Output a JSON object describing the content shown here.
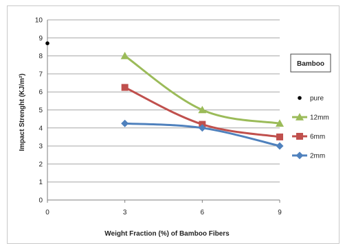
{
  "chart_data": {
    "type": "line",
    "x": [
      3,
      6,
      9
    ],
    "xlabel": "Weight Fraction (%) of Bamboo Fibers",
    "ylabel": "Impact Strenght (KJ/m²)",
    "xlim": [
      0,
      9
    ],
    "ylim": [
      0,
      10
    ],
    "xticks": [
      0,
      3,
      6,
      9
    ],
    "yticks": [
      0,
      1,
      2,
      3,
      4,
      5,
      6,
      7,
      8,
      9,
      10
    ],
    "grid": "horizontal",
    "legend_title": "Bamboo",
    "legend_position": "right",
    "pure_point": {
      "name": "pure",
      "x": 0,
      "y": 8.7,
      "color": "#000000",
      "marker": "circle"
    },
    "series": [
      {
        "name": "12mm",
        "values": [
          8.0,
          5.0,
          4.25
        ],
        "color": "#9bbb59",
        "marker": "triangle"
      },
      {
        "name": "6mm",
        "values": [
          6.25,
          4.2,
          3.5
        ],
        "color": "#c0504d",
        "marker": "square"
      },
      {
        "name": "2mm",
        "values": [
          4.25,
          4.0,
          3.0
        ],
        "color": "#4f81bd",
        "marker": "diamond"
      }
    ]
  }
}
